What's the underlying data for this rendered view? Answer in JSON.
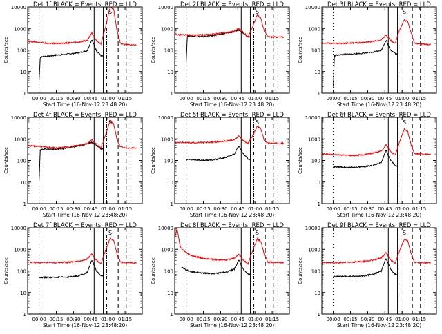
{
  "figure": {
    "ylabel": "Counts/sec",
    "xlabel": "Start Time (16-Nov-12 23:48:20)",
    "x_ticks": [
      "00:00",
      "00:15",
      "00:30",
      "00:45",
      "01:00",
      "01:15"
    ],
    "y_ticks": [
      "1",
      "10",
      "100",
      "1000",
      "10000"
    ],
    "colors": {
      "events": "#000000",
      "lld": "#ff0000",
      "axes": "#000000"
    },
    "marker_label": "S"
  },
  "chart_data": [
    {
      "type": "line",
      "title": "Det 1f BLACK = Events, RED = LLD",
      "xlabel": "Start Time (16-Nov-12 23:48:20)",
      "ylabel": "Counts/sec",
      "x_unit": "minutes after 23:48:20",
      "ylim": [
        1,
        10000
      ],
      "y_scale": "log",
      "x_ticks": [
        "00:00",
        "00:15",
        "00:30",
        "00:45",
        "01:00",
        "01:15"
      ],
      "series": [
        {
          "name": "Events",
          "color": "#000000",
          "x": [
            10,
            11,
            13,
            18,
            25,
            35,
            45,
            52,
            56,
            60,
            64,
            66
          ],
          "y": [
            4,
            45,
            50,
            52,
            58,
            65,
            75,
            95,
            300,
            95,
            55,
            50
          ]
        },
        {
          "name": "LLD",
          "color": "#ff0000",
          "x": [
            0,
            10,
            15,
            25,
            35,
            45,
            52,
            56,
            60,
            64,
            68,
            72,
            75,
            78,
            81,
            85,
            95
          ],
          "y": [
            250,
            230,
            210,
            200,
            210,
            230,
            280,
            620,
            270,
            190,
            1200,
            10000,
            8000,
            800,
            200,
            180,
            170
          ]
        }
      ],
      "vertical_lines": [
        {
          "x": 58,
          "style": "solid"
        },
        {
          "x": 66,
          "style": "solid"
        },
        {
          "x": 69,
          "style": "dash-dot"
        },
        {
          "x": 79,
          "style": "dashed"
        },
        {
          "x": 86,
          "style": "dashed"
        }
      ]
    },
    {
      "type": "line",
      "title": "Det 2f BLACK = Events, RED = LLD",
      "xlabel": "Start Time (16-Nov-12 23:48:20)",
      "ylabel": "Counts/sec",
      "x_unit": "minutes after 23:48:20",
      "ylim": [
        1,
        10000
      ],
      "y_scale": "log",
      "x_ticks": [
        "00:00",
        "00:15",
        "00:30",
        "00:45",
        "01:00",
        "01:15"
      ],
      "series": [
        {
          "name": "Events",
          "color": "#000000",
          "x": [
            10,
            11,
            15,
            25,
            35,
            45,
            52,
            56,
            60,
            64,
            66
          ],
          "y": [
            30,
            450,
            440,
            420,
            480,
            600,
            700,
            850,
            600,
            420,
            380
          ]
        },
        {
          "name": "LLD",
          "color": "#ff0000",
          "x": [
            0,
            10,
            15,
            25,
            35,
            45,
            52,
            56,
            60,
            64,
            68,
            72,
            75,
            78,
            81,
            85,
            95
          ],
          "y": [
            520,
            500,
            480,
            500,
            550,
            650,
            750,
            1000,
            650,
            400,
            1200,
            4500,
            3000,
            800,
            420,
            400,
            400
          ]
        }
      ],
      "vertical_lines": [
        {
          "x": 58,
          "style": "solid"
        },
        {
          "x": 66,
          "style": "solid"
        },
        {
          "x": 69,
          "style": "dash-dot"
        },
        {
          "x": 79,
          "style": "dashed"
        },
        {
          "x": 86,
          "style": "dashed"
        }
      ]
    },
    {
      "type": "line",
      "title": "Det 3f BLACK = Events, RED = LLD",
      "xlabel": "Start Time (16-Nov-12 23:48:20)",
      "ylabel": "Counts/sec",
      "x_unit": "minutes after 23:48:20",
      "ylim": [
        1,
        10000
      ],
      "y_scale": "log",
      "x_ticks": [
        "00:00",
        "00:15",
        "00:30",
        "00:45",
        "01:00",
        "01:15"
      ],
      "series": [
        {
          "name": "Events",
          "color": "#000000",
          "x": [
            10,
            11,
            15,
            25,
            35,
            45,
            52,
            56,
            60,
            64,
            66
          ],
          "y": [
            2,
            55,
            60,
            65,
            70,
            80,
            100,
            280,
            100,
            70,
            60
          ]
        },
        {
          "name": "LLD",
          "color": "#ff0000",
          "x": [
            0,
            10,
            15,
            25,
            35,
            45,
            52,
            56,
            60,
            64,
            68,
            72,
            75,
            78,
            81,
            85,
            95
          ],
          "y": [
            210,
            200,
            200,
            210,
            220,
            250,
            300,
            500,
            280,
            200,
            900,
            2500,
            2000,
            600,
            200,
            190,
            180
          ]
        }
      ],
      "vertical_lines": [
        {
          "x": 58,
          "style": "solid"
        },
        {
          "x": 66,
          "style": "solid"
        },
        {
          "x": 69,
          "style": "dash-dot"
        },
        {
          "x": 79,
          "style": "dashed"
        },
        {
          "x": 86,
          "style": "dashed"
        }
      ]
    },
    {
      "type": "line",
      "title": "Det 4f BLACK = Events, RED = LLD",
      "xlabel": "Start Time (16-Nov-12 23:48:20)",
      "ylabel": "Counts/sec",
      "x_unit": "minutes after 23:48:20",
      "ylim": [
        1,
        10000
      ],
      "y_scale": "log",
      "x_ticks": [
        "00:00",
        "00:15",
        "00:30",
        "00:45",
        "01:00",
        "01:15"
      ],
      "series": [
        {
          "name": "Events",
          "color": "#000000",
          "x": [
            10,
            11,
            15,
            25,
            35,
            45,
            52,
            56,
            60,
            64,
            66
          ],
          "y": [
            12,
            300,
            350,
            330,
            380,
            480,
            600,
            700,
            500,
            350,
            320
          ]
        },
        {
          "name": "LLD",
          "color": "#ff0000",
          "x": [
            0,
            10,
            15,
            25,
            35,
            45,
            52,
            56,
            60,
            64,
            68,
            72,
            75,
            78,
            81,
            85,
            95
          ],
          "y": [
            480,
            460,
            420,
            380,
            420,
            520,
            620,
            900,
            560,
            380,
            1500,
            7000,
            5000,
            900,
            420,
            380,
            380
          ]
        }
      ],
      "vertical_lines": [
        {
          "x": 58,
          "style": "solid"
        },
        {
          "x": 66,
          "style": "solid"
        },
        {
          "x": 69,
          "style": "dash-dot"
        },
        {
          "x": 79,
          "style": "dashed"
        },
        {
          "x": 86,
          "style": "dashed"
        }
      ]
    },
    {
      "type": "line",
      "title": "Det 5f BLACK = Events, RED = LLD",
      "xlabel": "Start Time (16-Nov-12 23:48:20)",
      "ylabel": "Counts/sec",
      "x_unit": "minutes after 23:48:20",
      "ylim": [
        1,
        10000
      ],
      "y_scale": "log",
      "x_ticks": [
        "00:00",
        "00:15",
        "00:30",
        "00:45",
        "01:00",
        "01:15"
      ],
      "series": [
        {
          "name": "Events",
          "color": "#000000",
          "x": [
            10,
            15,
            25,
            35,
            45,
            52,
            56,
            60,
            64,
            66
          ],
          "y": [
            110,
            110,
            100,
            110,
            140,
            200,
            480,
            200,
            120,
            100
          ]
        },
        {
          "name": "LLD",
          "color": "#ff0000",
          "x": [
            0,
            10,
            15,
            25,
            35,
            45,
            52,
            56,
            60,
            64,
            68,
            72,
            75,
            78,
            81,
            85,
            95
          ],
          "y": [
            680,
            680,
            660,
            680,
            720,
            800,
            900,
            1400,
            800,
            620,
            1400,
            3800,
            3000,
            900,
            650,
            630,
            630
          ]
        }
      ],
      "vertical_lines": [
        {
          "x": 58,
          "style": "solid"
        },
        {
          "x": 66,
          "style": "solid"
        },
        {
          "x": 69,
          "style": "dash-dot"
        },
        {
          "x": 79,
          "style": "dashed"
        },
        {
          "x": 86,
          "style": "dashed"
        }
      ]
    },
    {
      "type": "line",
      "title": "Det 6f BLACK = Events, RED = LLD",
      "xlabel": "Start Time (16-Nov-12 23:48:20)",
      "ylabel": "Counts/sec",
      "x_unit": "minutes after 23:48:20",
      "ylim": [
        1,
        10000
      ],
      "y_scale": "log",
      "x_ticks": [
        "00:00",
        "00:15",
        "00:30",
        "00:45",
        "01:00",
        "01:15"
      ],
      "series": [
        {
          "name": "Events",
          "color": "#000000",
          "x": [
            10,
            15,
            25,
            35,
            45,
            52,
            56,
            60,
            64,
            66
          ],
          "y": [
            50,
            50,
            48,
            50,
            60,
            80,
            300,
            100,
            60,
            50
          ]
        },
        {
          "name": "LLD",
          "color": "#ff0000",
          "x": [
            0,
            10,
            15,
            25,
            35,
            45,
            52,
            56,
            60,
            64,
            68,
            72,
            75,
            78,
            81,
            85,
            95
          ],
          "y": [
            200,
            190,
            180,
            170,
            180,
            220,
            280,
            520,
            260,
            180,
            800,
            2800,
            2200,
            500,
            200,
            200,
            190
          ]
        }
      ],
      "vertical_lines": [
        {
          "x": 58,
          "style": "solid"
        },
        {
          "x": 66,
          "style": "solid"
        },
        {
          "x": 69,
          "style": "dash-dot"
        },
        {
          "x": 79,
          "style": "dashed"
        },
        {
          "x": 86,
          "style": "dashed"
        }
      ]
    },
    {
      "type": "line",
      "title": "Det 7f BLACK = Events, RED = LLD",
      "xlabel": "Start Time (16-Nov-12 23:48:20)",
      "ylabel": "Counts/sec",
      "x_unit": "minutes after 23:48:20",
      "ylim": [
        1,
        10000
      ],
      "y_scale": "log",
      "x_ticks": [
        "00:00",
        "00:15",
        "00:30",
        "00:45",
        "01:00",
        "01:15"
      ],
      "series": [
        {
          "name": "Events",
          "color": "#000000",
          "x": [
            10,
            15,
            25,
            35,
            45,
            52,
            56,
            60,
            64,
            66
          ],
          "y": [
            50,
            50,
            50,
            52,
            60,
            85,
            320,
            100,
            60,
            55
          ]
        },
        {
          "name": "LLD",
          "color": "#ff0000",
          "x": [
            0,
            10,
            15,
            25,
            35,
            45,
            52,
            56,
            60,
            64,
            68,
            72,
            75,
            78,
            81,
            85,
            95
          ],
          "y": [
            250,
            240,
            240,
            240,
            250,
            280,
            350,
            620,
            300,
            220,
            900,
            3200,
            2600,
            600,
            250,
            240,
            240
          ]
        }
      ],
      "vertical_lines": [
        {
          "x": 58,
          "style": "solid"
        },
        {
          "x": 66,
          "style": "solid"
        },
        {
          "x": 69,
          "style": "dash-dot"
        },
        {
          "x": 79,
          "style": "dashed"
        },
        {
          "x": 86,
          "style": "dashed"
        }
      ]
    },
    {
      "type": "line",
      "title": "Det 8f BLACK = Events, RED = LLD",
      "xlabel": "Start Time (16-Nov-12 23:48:20)",
      "ylabel": "Counts/sec",
      "x_unit": "minutes after 23:48:20",
      "ylim": [
        1,
        10000
      ],
      "y_scale": "log",
      "x_ticks": [
        "00:00",
        "00:15",
        "00:30",
        "00:45",
        "01:00",
        "01:15"
      ],
      "series": [
        {
          "name": "Events",
          "color": "#000000",
          "x": [
            6,
            10,
            15,
            25,
            35,
            45,
            52,
            56,
            60,
            64,
            66
          ],
          "y": [
            150,
            110,
            90,
            80,
            75,
            90,
            120,
            320,
            110,
            70,
            65
          ]
        },
        {
          "name": "LLD",
          "color": "#ff0000",
          "x": [
            0,
            2,
            5,
            10,
            15,
            25,
            35,
            45,
            52,
            56,
            60,
            64,
            68,
            72,
            75,
            78,
            81,
            85,
            95
          ],
          "y": [
            3000,
            9000,
            1200,
            700,
            500,
            380,
            330,
            320,
            380,
            600,
            300,
            220,
            900,
            3000,
            2400,
            600,
            260,
            250,
            240
          ]
        }
      ],
      "vertical_lines": [
        {
          "x": 58,
          "style": "solid"
        },
        {
          "x": 66,
          "style": "solid"
        },
        {
          "x": 69,
          "style": "dash-dot"
        },
        {
          "x": 79,
          "style": "dashed"
        },
        {
          "x": 86,
          "style": "dashed"
        }
      ]
    },
    {
      "type": "line",
      "title": "Det 9f BLACK = Events, RED = LLD",
      "xlabel": "Start Time (16-Nov-12 23:48:20)",
      "ylabel": "Counts/sec",
      "x_unit": "minutes after 23:48:20",
      "ylim": [
        1,
        10000
      ],
      "y_scale": "log",
      "x_ticks": [
        "00:00",
        "00:15",
        "00:30",
        "00:45",
        "01:00",
        "01:15"
      ],
      "series": [
        {
          "name": "Events",
          "color": "#000000",
          "x": [
            10,
            15,
            25,
            35,
            45,
            52,
            56,
            60,
            64,
            66
          ],
          "y": [
            55,
            55,
            55,
            58,
            70,
            100,
            380,
            120,
            70,
            60
          ]
        },
        {
          "name": "LLD",
          "color": "#ff0000",
          "x": [
            0,
            10,
            15,
            25,
            35,
            45,
            52,
            56,
            60,
            64,
            68,
            72,
            75,
            78,
            81,
            85,
            95
          ],
          "y": [
            240,
            240,
            240,
            250,
            270,
            320,
            400,
            700,
            320,
            230,
            900,
            3000,
            2400,
            600,
            250,
            240,
            240
          ]
        }
      ],
      "vertical_lines": [
        {
          "x": 58,
          "style": "solid"
        },
        {
          "x": 66,
          "style": "solid"
        },
        {
          "x": 69,
          "style": "dash-dot"
        },
        {
          "x": 79,
          "style": "dashed"
        },
        {
          "x": 86,
          "style": "dashed"
        }
      ]
    }
  ]
}
